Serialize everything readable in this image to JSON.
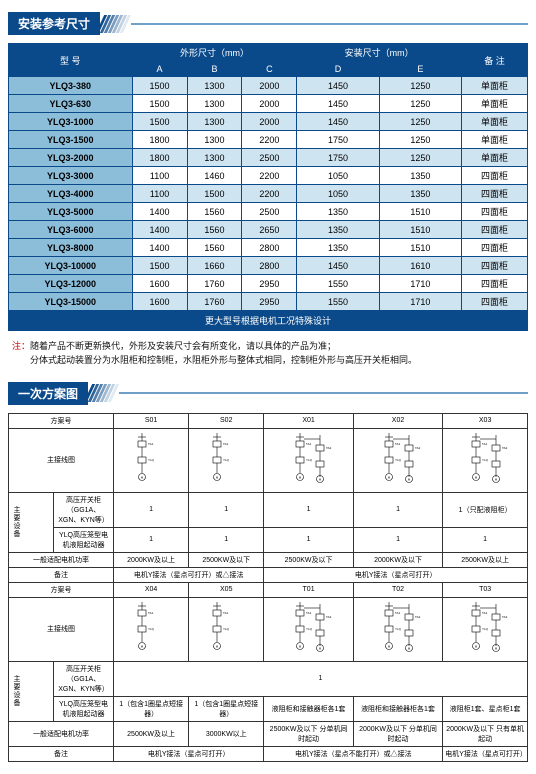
{
  "sec1_title": "安装参考尺寸",
  "dim_head": {
    "model": "型 号",
    "outer": "外形尺寸（mm）",
    "install": "安装尺寸（mm）",
    "remark": "备 注",
    "A": "A",
    "B": "B",
    "C": "C",
    "D": "D",
    "E": "E"
  },
  "dim_rows": [
    {
      "m": "YLQ3-380",
      "a": "1500",
      "b": "1300",
      "c": "2000",
      "d": "1450",
      "e": "1250",
      "r": "单面柜"
    },
    {
      "m": "YLQ3-630",
      "a": "1500",
      "b": "1300",
      "c": "2000",
      "d": "1450",
      "e": "1250",
      "r": "单面柜"
    },
    {
      "m": "YLQ3-1000",
      "a": "1500",
      "b": "1300",
      "c": "2000",
      "d": "1450",
      "e": "1250",
      "r": "单面柜"
    },
    {
      "m": "YLQ3-1500",
      "a": "1800",
      "b": "1300",
      "c": "2200",
      "d": "1750",
      "e": "1250",
      "r": "单面柜"
    },
    {
      "m": "YLQ3-2000",
      "a": "1800",
      "b": "1300",
      "c": "2500",
      "d": "1750",
      "e": "1250",
      "r": "单面柜"
    },
    {
      "m": "YLQ3-3000",
      "a": "1100",
      "b": "1460",
      "c": "2200",
      "d": "1050",
      "e": "1350",
      "r": "四面柜"
    },
    {
      "m": "YLQ3-4000",
      "a": "1100",
      "b": "1500",
      "c": "2200",
      "d": "1050",
      "e": "1350",
      "r": "四面柜"
    },
    {
      "m": "YLQ3-5000",
      "a": "1400",
      "b": "1560",
      "c": "2500",
      "d": "1350",
      "e": "1510",
      "r": "四面柜"
    },
    {
      "m": "YLQ3-6000",
      "a": "1400",
      "b": "1560",
      "c": "2650",
      "d": "1350",
      "e": "1510",
      "r": "四面柜"
    },
    {
      "m": "YLQ3-8000",
      "a": "1400",
      "b": "1560",
      "c": "2800",
      "d": "1350",
      "e": "1510",
      "r": "四面柜"
    },
    {
      "m": "YLQ3-10000",
      "a": "1500",
      "b": "1660",
      "c": "2800",
      "d": "1450",
      "e": "1610",
      "r": "四面柜"
    },
    {
      "m": "YLQ3-12000",
      "a": "1600",
      "b": "1760",
      "c": "2950",
      "d": "1550",
      "e": "1710",
      "r": "四面柜"
    },
    {
      "m": "YLQ3-15000",
      "a": "1600",
      "b": "1760",
      "c": "2950",
      "d": "1550",
      "e": "1710",
      "r": "四面柜"
    }
  ],
  "dim_foot": "更大型号根据电机工况特殊设计",
  "note_label": "注：",
  "note_l1": "随着产品不断更新换代，外形及安装尺寸会有所变化，请以具体的产品为准；",
  "note_l2": "分体式起动装置分为水阻柜和控制柜，水阻柜外形与整体式相同，控制柜外形与高压开关柜相同。",
  "sec2_title": "一次方案图",
  "scheme_col_label": "方案号",
  "main_wiring": "主接线图",
  "main_equip": "主要设备",
  "row_sw": "高压开关柜（GG1A、XGN、KYN等）",
  "row_ylq": "YLQ高压笼型电机液阻起动器",
  "row_power": "一般适配电机功率",
  "row_remark": "备注",
  "row_scheme": "方案号",
  "g1": {
    "codes": [
      "S01",
      "S02",
      "X01",
      "X02",
      "X03"
    ],
    "sw": [
      "1",
      "1",
      "1",
      "1",
      "1（只配液阻柜）"
    ],
    "ylq": [
      "1",
      "1",
      "1",
      "1",
      "1"
    ],
    "pw": [
      "2000KW及以上",
      "2500KW及以下",
      "2500KW及以下",
      "2000KW及以下",
      "2500KW及以上"
    ],
    "rmk_a": "电机Y接法（星点可打开）或△接法",
    "rmk_b": "电机Y接法（星点可打开）"
  },
  "g2": {
    "codes": [
      "X04",
      "X05",
      "T01",
      "T02",
      "T03"
    ],
    "sw": [
      "1（包含1圈星点短接器）",
      "1（包含1圈星点短接器）",
      "液阻柜和接触器柜各1套",
      "液阻柜和接触器柜各1套",
      "液阻柜1套、星点柜1套"
    ],
    "pw": [
      "2500KW及以上",
      "3000KW以上",
      "2500KW及以下  分单机同时起动",
      "2000KW及以下  分单机同时起动",
      "2000KW及以下  只有单机起动"
    ],
    "rmk_a": "电机Y接法（星点可打开）",
    "rmk_b": "电机Y接法（星点不能打开）或△接法",
    "rmk_c": "电机Y接法（星点可打开）"
  }
}
